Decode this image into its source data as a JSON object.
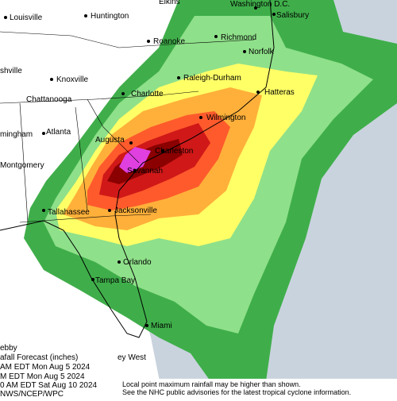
{
  "cities": [
    "Louisville",
    "Huntington",
    "Elkins",
    "Washington D.C.",
    "Salisbury",
    "Roanoke",
    "Richmond",
    "Norfolk",
    "shville",
    "Knoxville",
    "Raleigh-Durham",
    "Charlotte",
    "Hatteras",
    "Chattanooga",
    "mingham",
    "Atlanta",
    "Augusta",
    "Wilmington",
    "Charleston",
    "Montgomery",
    "Savannah",
    "Tallahassee",
    "Jacksonville",
    "Orlando",
    "Tampa Bay",
    "Miami",
    "ey West"
  ],
  "legend": {
    "title": "ebby",
    "subtitle": "afall Forecast (inches)",
    "lines": [
      "AM EDT Mon Aug 5 2024",
      "M EDT Mon Aug 5 2024",
      "0 AM EDT Sat Aug 10 2024"
    ],
    "source": "NWS/NCEP/WPC"
  },
  "note": [
    "Local point maximum rainfall may be higher than shown.",
    "See the NHC public advisories for the latest tropical cyclone information."
  ]
}
